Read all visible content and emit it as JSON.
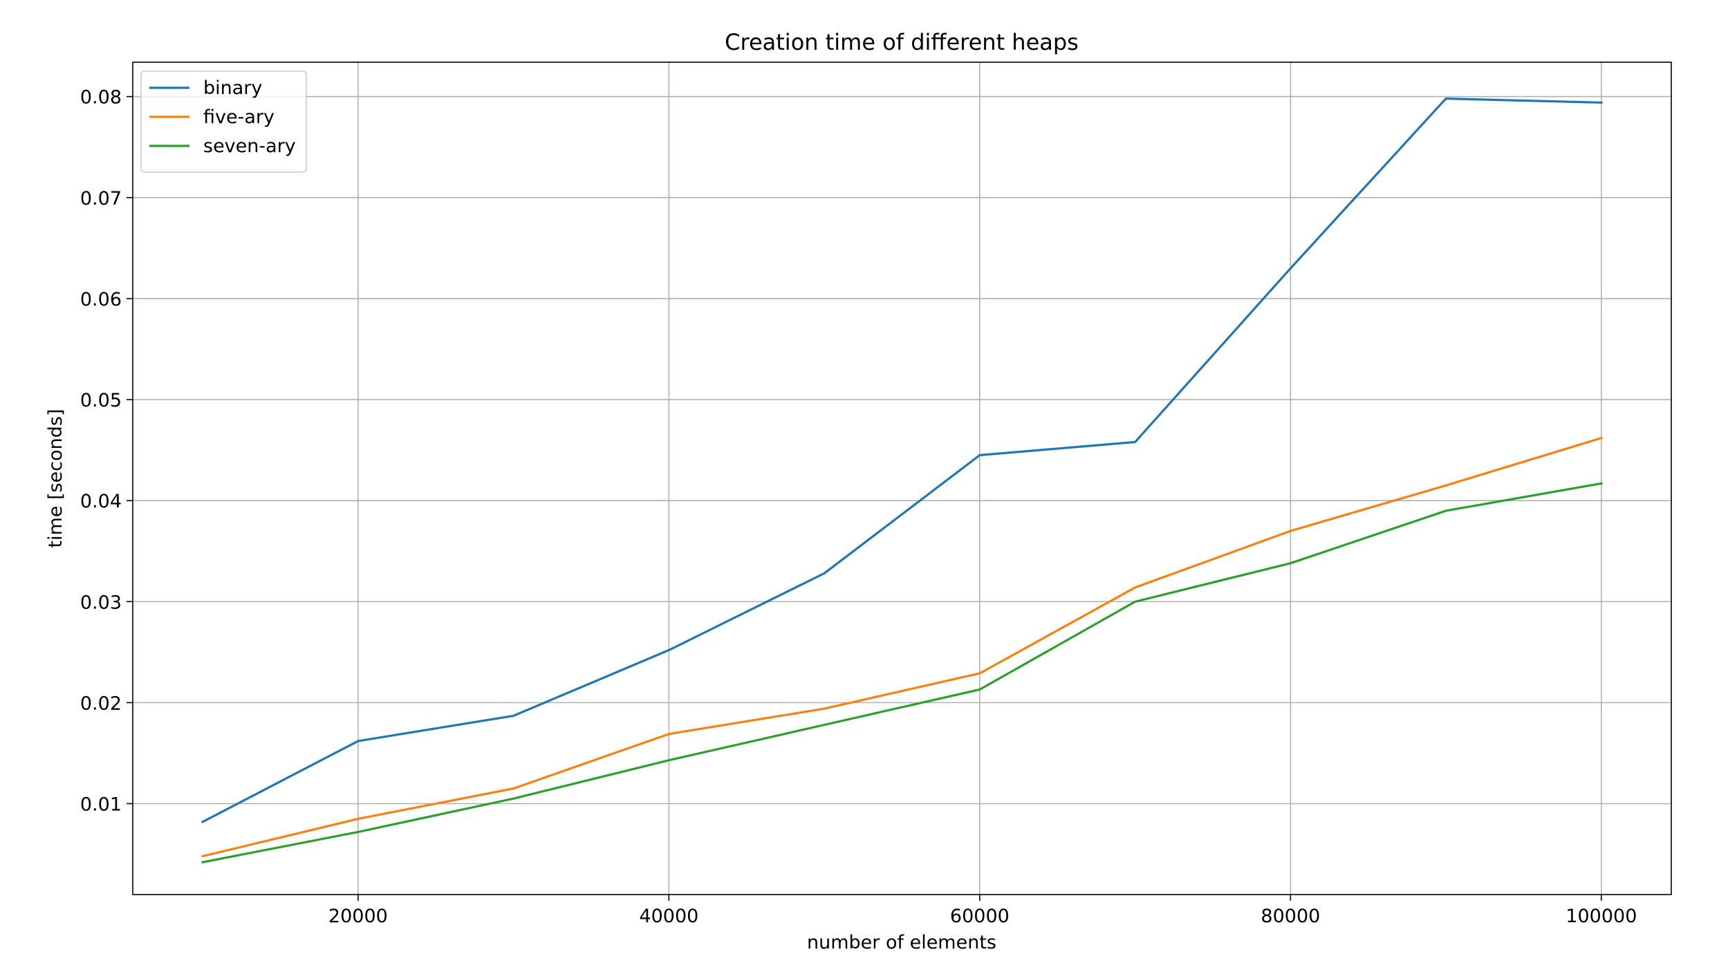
{
  "chart_data": {
    "type": "line",
    "title": "Creation time of different heaps",
    "xlabel": "number of elements",
    "ylabel": "time [seconds]",
    "x": [
      10000,
      20000,
      30000,
      40000,
      50000,
      60000,
      70000,
      80000,
      90000,
      100000
    ],
    "xlim": [
      5500,
      104500
    ],
    "ylim": [
      0.001,
      0.0834
    ],
    "xticks": [
      20000,
      40000,
      60000,
      80000,
      100000
    ],
    "xtick_labels": [
      "20000",
      "40000",
      "60000",
      "80000",
      "100000"
    ],
    "yticks": [
      0.01,
      0.02,
      0.03,
      0.04,
      0.05,
      0.06,
      0.07,
      0.08
    ],
    "ytick_labels": [
      "0.01",
      "0.02",
      "0.03",
      "0.04",
      "0.05",
      "0.06",
      "0.07",
      "0.08"
    ],
    "grid": true,
    "legend_position": "top-left",
    "series": [
      {
        "name": "binary",
        "color": "#1f77b4",
        "values": [
          0.0082,
          0.0162,
          0.0187,
          0.0252,
          0.0328,
          0.0445,
          0.0458,
          0.063,
          0.0798,
          0.0794
        ]
      },
      {
        "name": "five-ary",
        "color": "#ff7f0e",
        "values": [
          0.0048,
          0.0085,
          0.0115,
          0.0169,
          0.0194,
          0.0229,
          0.0314,
          0.037,
          0.0415,
          0.0462
        ]
      },
      {
        "name": "seven-ary",
        "color": "#2ca02c",
        "values": [
          0.0042,
          0.0072,
          0.0105,
          0.0143,
          0.0178,
          0.0213,
          0.03,
          0.0338,
          0.039,
          0.0417
        ]
      }
    ]
  }
}
